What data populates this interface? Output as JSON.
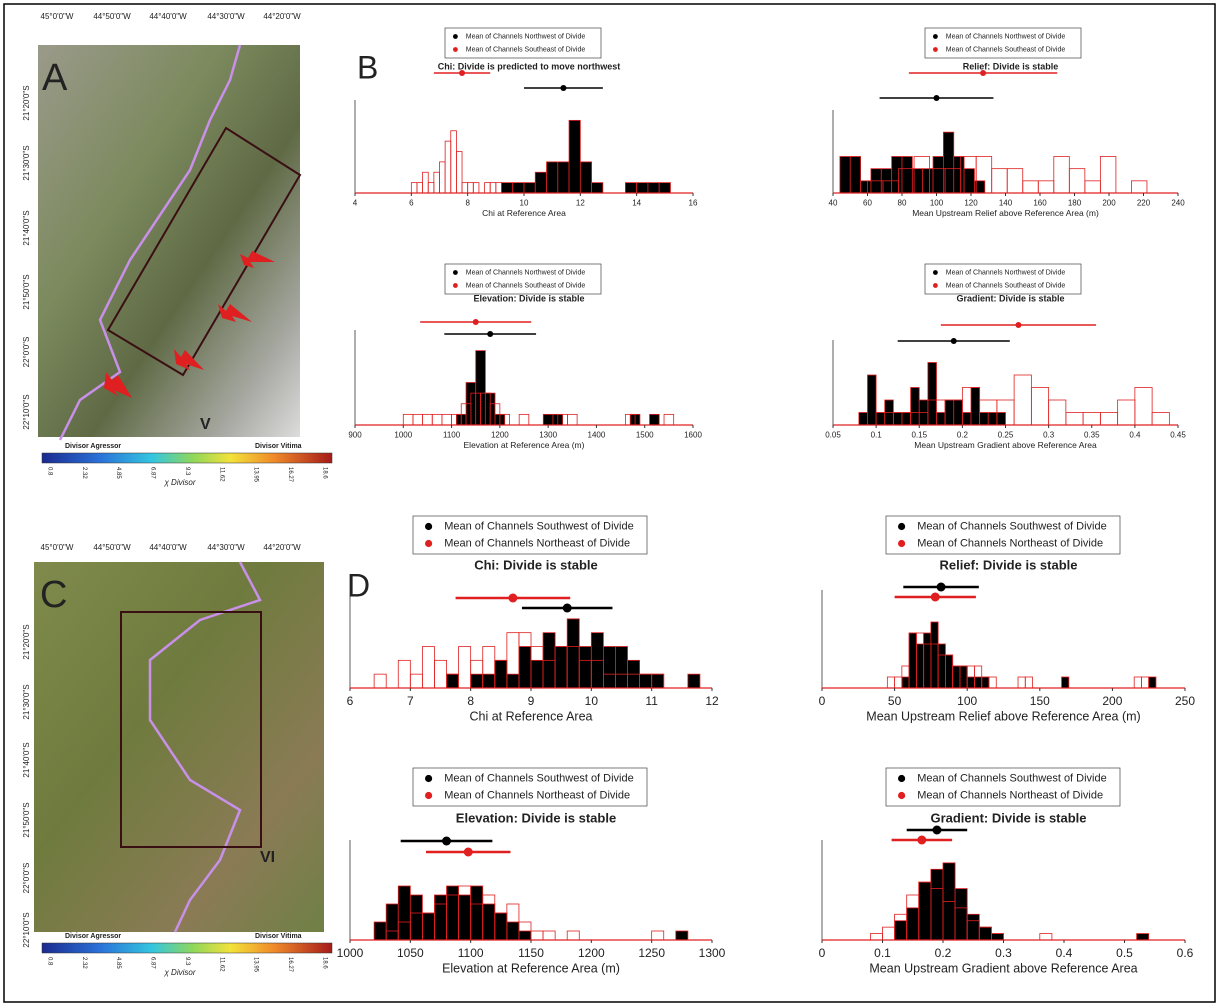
{
  "maps": [
    {
      "label": "A",
      "lon_labels": [
        "45°0'0\"W",
        "44°50'0\"W",
        "44°40'0\"W",
        "44°30'0\"W",
        "44°20'0\"W"
      ],
      "lat_labels": [
        "21°20'0\"S",
        "21°30'0\"S",
        "21°40'0\"S",
        "21°50'0\"S",
        "22°0'0\"S",
        "22°10'0\"S"
      ],
      "marker": "V",
      "colorbar": {
        "left": "Divisor Agressor",
        "right": "Divisor Vitima",
        "ticks": [
          "0.8",
          "2.32",
          "4.85",
          "6.87",
          "9.3",
          "11.62",
          "13.95",
          "16.27",
          "18.6"
        ],
        "title": "χ Divisor"
      }
    },
    {
      "label": "C",
      "lon_labels": [
        "45°0'0\"W",
        "44°50'0\"W",
        "44°40'0\"W",
        "44°30'0\"W",
        "44°20'0\"W"
      ],
      "lat_labels": [
        "21°20'0\"S",
        "21°30'0\"S",
        "21°40'0\"S",
        "21°50'0\"S",
        "22°0'0\"S",
        "22°10'0\"S"
      ],
      "marker": "VI",
      "colorbar": {
        "left": "Divisor Agressor",
        "right": "Divisor Vitima",
        "ticks": [
          "0.8",
          "2.32",
          "4.85",
          "6.87",
          "9.3",
          "11.62",
          "13.95",
          "16.27",
          "18.6"
        ],
        "title": "χ Divisor"
      }
    }
  ],
  "panel_labels": [
    "B",
    "D"
  ],
  "chart_data": [
    {
      "type": "histogram",
      "title": "Chi: Divide is predicted to move northwest",
      "xlabel": "Chi at Reference Area",
      "xlim": [
        4,
        16
      ],
      "xticks": [
        4,
        6,
        8,
        10,
        12,
        14,
        16
      ],
      "ylim": [
        0,
        8
      ],
      "series": [
        {
          "name": "Mean of Channels Northwest of Divide",
          "color": "#000000",
          "mean": 11.4,
          "error": 1.4,
          "bins": [
            9.2,
            9.6,
            10,
            10.4,
            10.8,
            11.2,
            11.6,
            12,
            12.4,
            12.8,
            13.2,
            13.6,
            14,
            14.4,
            14.8,
            15.2
          ],
          "counts": [
            1,
            1,
            1,
            2,
            3,
            3,
            7,
            3,
            1,
            0,
            0,
            1,
            1,
            1,
            1
          ]
        },
        {
          "name": "Mean of Channels Southeast of Divide",
          "color": "#e02020",
          "mean": 7.8,
          "error": 1,
          "bins": [
            6,
            6.2,
            6.4,
            6.6,
            6.8,
            7,
            7.2,
            7.4,
            7.6,
            7.8,
            8,
            8.2,
            8.4,
            8.6,
            8.8,
            9,
            9.2
          ],
          "counts": [
            1,
            1,
            2,
            1,
            2,
            3,
            5,
            6,
            4,
            1,
            1,
            1,
            0,
            1,
            1,
            1
          ]
        }
      ]
    },
    {
      "type": "histogram",
      "title": "Relief: Divide is stable",
      "xlabel": "Mean Upstream Relief above Reference Area (m)",
      "xlim": [
        40,
        240
      ],
      "xticks": [
        40,
        60,
        80,
        100,
        120,
        140,
        160,
        180,
        200,
        220,
        240
      ],
      "ylim": [
        0,
        6
      ],
      "series": [
        {
          "name": "Mean of Channels Northwest of Divide",
          "color": "#000000",
          "mean": 100,
          "error": 33,
          "bins": [
            44,
            50,
            56,
            62,
            68,
            74,
            80,
            86,
            92,
            98,
            104,
            110,
            116,
            122,
            128,
            134
          ],
          "counts": [
            3,
            3,
            1,
            2,
            2,
            3,
            3,
            2,
            2,
            3,
            5,
            3,
            2,
            1,
            0
          ]
        },
        {
          "name": "Mean of Channels Southeast of Divide",
          "color": "#e02020",
          "mean": 127,
          "error": 43,
          "bins": [
            60,
            69,
            78,
            87,
            96,
            105,
            114,
            123,
            132,
            141,
            150,
            159,
            168,
            177,
            186,
            195,
            204,
            213,
            222
          ],
          "counts": [
            1,
            1,
            2,
            3,
            2,
            2,
            3,
            3,
            2,
            2,
            1,
            1,
            3,
            2,
            1,
            3,
            0,
            1
          ]
        }
      ]
    },
    {
      "type": "histogram",
      "title": "Elevation: Divide is stable",
      "xlabel": "Elevation at Reference Area (m)",
      "xlim": [
        900,
        1600
      ],
      "xticks": [
        900,
        1000,
        1100,
        1200,
        1300,
        1400,
        1500,
        1600
      ],
      "ylim": [
        0,
        8
      ],
      "series": [
        {
          "name": "Mean of Channels Northwest of Divide",
          "color": "#000000",
          "mean": 1180,
          "error": 95,
          "bins": [
            1110,
            1130,
            1150,
            1170,
            1190,
            1210,
            1230,
            1250,
            1270,
            1290,
            1310,
            1330,
            1350,
            1370,
            1390,
            1410,
            1430,
            1450,
            1470,
            1490,
            1510,
            1530
          ],
          "counts": [
            1,
            4,
            7,
            3,
            1,
            0,
            0,
            0,
            0,
            1,
            1,
            0,
            0,
            0,
            0,
            0,
            0,
            0,
            1,
            0,
            1
          ]
        },
        {
          "name": "Mean of Channels Southeast of Divide",
          "color": "#e02020",
          "mean": 1150,
          "error": 115,
          "bins": [
            1000,
            1020,
            1040,
            1060,
            1080,
            1100,
            1120,
            1140,
            1160,
            1180,
            1200,
            1220,
            1240,
            1260,
            1280,
            1300,
            1320,
            1340,
            1360,
            1380,
            1400,
            1420,
            1440,
            1460,
            1480,
            1500,
            1520,
            1540,
            1560
          ],
          "counts": [
            1,
            1,
            1,
            1,
            1,
            1,
            2,
            3,
            3,
            2,
            1,
            0,
            1,
            0,
            0,
            0,
            1,
            1,
            0,
            0,
            0,
            0,
            0,
            1,
            0,
            0,
            0,
            1
          ]
        }
      ]
    },
    {
      "type": "histogram",
      "title": "Gradient: Divide is stable",
      "xlabel": "Mean Upstream Gradient above Reference Area",
      "xlim": [
        0.05,
        0.45
      ],
      "xticks": [
        0.05,
        0.1,
        0.15,
        0.2,
        0.25,
        0.3,
        0.35,
        0.4,
        0.45
      ],
      "ylim": [
        0,
        6
      ],
      "series": [
        {
          "name": "Mean of Channels Northwest of Divide",
          "color": "#000000",
          "mean": 0.19,
          "error": 0.065,
          "bins": [
            0.08,
            0.09,
            0.1,
            0.11,
            0.12,
            0.13,
            0.14,
            0.15,
            0.16,
            0.17,
            0.18,
            0.19,
            0.2,
            0.21,
            0.22,
            0.23,
            0.24,
            0.25,
            0.26
          ],
          "counts": [
            1,
            4,
            1,
            2,
            1,
            1,
            3,
            2,
            5,
            1,
            2,
            2,
            1,
            3,
            1,
            1,
            1,
            0
          ]
        },
        {
          "name": "Mean of Channels Southeast of Divide",
          "color": "#e02020",
          "mean": 0.265,
          "error": 0.09,
          "bins": [
            0.1,
            0.12,
            0.14,
            0.16,
            0.18,
            0.2,
            0.22,
            0.24,
            0.26,
            0.28,
            0.3,
            0.32,
            0.34,
            0.36,
            0.38,
            0.4,
            0.42,
            0.44
          ],
          "counts": [
            1,
            1,
            1,
            2,
            2,
            3,
            2,
            2,
            4,
            3,
            2,
            1,
            1,
            1,
            2,
            3,
            1
          ]
        }
      ]
    },
    {
      "type": "histogram",
      "title": "Chi: Divide is stable",
      "xlabel": "Chi at Reference Area",
      "xlim": [
        6,
        12
      ],
      "xticks": [
        6,
        7,
        8,
        9,
        10,
        11,
        12
      ],
      "ylim": [
        0,
        6
      ],
      "series": [
        {
          "name": "Mean of Channels Southwest of Divide",
          "color": "#000000",
          "mean": 9.6,
          "error": 0.75,
          "bins": [
            7.6,
            7.8,
            8,
            8.2,
            8.4,
            8.6,
            8.8,
            9,
            9.2,
            9.4,
            9.6,
            9.8,
            10,
            10.2,
            10.4,
            10.6,
            10.8,
            11,
            11.2,
            11.4,
            11.6,
            11.8
          ],
          "counts": [
            1,
            0,
            1,
            1,
            2,
            1,
            3,
            2,
            4,
            3,
            5,
            3,
            4,
            3,
            3,
            2,
            1,
            1,
            0,
            0,
            1
          ]
        },
        {
          "name": "Mean of Channels Northeast of Divide",
          "color": "#e02020",
          "mean": 8.7,
          "error": 0.95,
          "bins": [
            6.4,
            6.6,
            6.8,
            7,
            7.2,
            7.4,
            7.6,
            7.8,
            8,
            8.2,
            8.4,
            8.6,
            8.8,
            9,
            9.2,
            9.4,
            9.6,
            9.8,
            10,
            10.2,
            10.4,
            10.6,
            10.8,
            11,
            11.2
          ],
          "counts": [
            1,
            0,
            2,
            1,
            3,
            2,
            1,
            3,
            2,
            3,
            2,
            4,
            4,
            3,
            2,
            3,
            3,
            2,
            2,
            1,
            1,
            1,
            1,
            1
          ]
        }
      ]
    },
    {
      "type": "histogram",
      "title": "Relief: Divide is stable",
      "xlabel": "Mean Upstream Relief above Reference Area (m)",
      "xlim": [
        0,
        250
      ],
      "xticks": [
        0,
        50,
        100,
        150,
        200,
        250
      ],
      "ylim": [
        0,
        8
      ],
      "series": [
        {
          "name": "Mean of Channels Southwest of Divide",
          "color": "#000000",
          "mean": 82,
          "error": 26,
          "bins": [
            55,
            60,
            65,
            70,
            75,
            80,
            85,
            90,
            95,
            100,
            105,
            110,
            115,
            120,
            125,
            130,
            135,
            140,
            145,
            150,
            155,
            160,
            165,
            170,
            175,
            180,
            185,
            190,
            195,
            200,
            205,
            210,
            215,
            220,
            225,
            230
          ],
          "counts": [
            1,
            5,
            4,
            5,
            6,
            4,
            3,
            2,
            2,
            1,
            1,
            1,
            0,
            0,
            0,
            0,
            0,
            0,
            0,
            0,
            0,
            0,
            1,
            0,
            0,
            0,
            0,
            0,
            0,
            0,
            0,
            0,
            0,
            0,
            1
          ]
        },
        {
          "name": "Mean of Channels Northeast of Divide",
          "color": "#e02020",
          "mean": 78,
          "error": 28,
          "bins": [
            45,
            50,
            55,
            60,
            65,
            70,
            75,
            80,
            85,
            90,
            95,
            100,
            105,
            110,
            115,
            120,
            125,
            130,
            135,
            140,
            145,
            150,
            155,
            160,
            165,
            170,
            175,
            180,
            185,
            190,
            195,
            200,
            205,
            210,
            215,
            220,
            225
          ],
          "counts": [
            1,
            1,
            2,
            5,
            5,
            4,
            4,
            3,
            3,
            2,
            2,
            2,
            2,
            1,
            1,
            0,
            0,
            0,
            1,
            1,
            0,
            0,
            0,
            0,
            0,
            0,
            0,
            0,
            0,
            0,
            0,
            0,
            0,
            0,
            1,
            1
          ]
        }
      ]
    },
    {
      "type": "histogram",
      "title": "Elevation: Divide is stable",
      "xlabel": "Elevation at Reference Area (m)",
      "xlim": [
        1000,
        1300
      ],
      "xticks": [
        1000,
        1050,
        1100,
        1150,
        1200,
        1250,
        1300
      ],
      "ylim": [
        0,
        10
      ],
      "series": [
        {
          "name": "Mean of Channels Southwest of Divide",
          "color": "#000000",
          "mean": 1080,
          "error": 38,
          "bins": [
            1020,
            1030,
            1040,
            1050,
            1060,
            1070,
            1080,
            1090,
            1100,
            1110,
            1120,
            1130,
            1140,
            1150,
            1160,
            1170,
            1180,
            1190,
            1200,
            1210,
            1220,
            1230,
            1240,
            1250,
            1260,
            1270,
            1280
          ],
          "counts": [
            2,
            4,
            6,
            5,
            3,
            5,
            6,
            5,
            6,
            4,
            3,
            2,
            1,
            0,
            0,
            0,
            0,
            0,
            0,
            0,
            0,
            0,
            0,
            0,
            0,
            1
          ]
        },
        {
          "name": "Mean of Channels Northeast of Divide",
          "color": "#e02020",
          "mean": 1098,
          "error": 35,
          "bins": [
            1030,
            1040,
            1050,
            1060,
            1070,
            1080,
            1090,
            1100,
            1110,
            1120,
            1130,
            1140,
            1150,
            1160,
            1170,
            1180,
            1190,
            1200,
            1210,
            1220,
            1230,
            1240,
            1250,
            1260
          ],
          "counts": [
            1,
            2,
            3,
            3,
            4,
            5,
            6,
            4,
            5,
            3,
            4,
            2,
            1,
            1,
            0,
            1,
            0,
            0,
            0,
            0,
            0,
            0,
            1
          ]
        }
      ]
    },
    {
      "type": "histogram",
      "title": "Gradient: Divide is stable",
      "xlabel": "Mean Upstream Gradient above Reference Area",
      "xlim": [
        0,
        0.6
      ],
      "xticks": [
        0,
        0.1,
        0.2,
        0.3,
        0.4,
        0.5,
        0.6
      ],
      "ylim": [
        0,
        14
      ],
      "series": [
        {
          "name": "Mean of Channels Southwest of Divide",
          "color": "#000000",
          "mean": 0.19,
          "error": 0.05,
          "bins": [
            0.12,
            0.14,
            0.16,
            0.18,
            0.2,
            0.22,
            0.24,
            0.26,
            0.28,
            0.3,
            0.32,
            0.34,
            0.36,
            0.38,
            0.4,
            0.42,
            0.44,
            0.46,
            0.48,
            0.5,
            0.52,
            0.54
          ],
          "counts": [
            3,
            5,
            9,
            11,
            12,
            8,
            4,
            2,
            1,
            0,
            0,
            0,
            0,
            0,
            0,
            0,
            0,
            0,
            0,
            0,
            1
          ]
        },
        {
          "name": "Mean of Channels Northeast of Divide",
          "color": "#e02020",
          "mean": 0.165,
          "error": 0.05,
          "bins": [
            0.08,
            0.1,
            0.12,
            0.14,
            0.16,
            0.18,
            0.2,
            0.22,
            0.24,
            0.26,
            0.28,
            0.3,
            0.32,
            0.34,
            0.36,
            0.38
          ],
          "counts": [
            1,
            2,
            4,
            7,
            9,
            8,
            6,
            5,
            3,
            2,
            1,
            0,
            0,
            0,
            1
          ]
        }
      ]
    }
  ]
}
